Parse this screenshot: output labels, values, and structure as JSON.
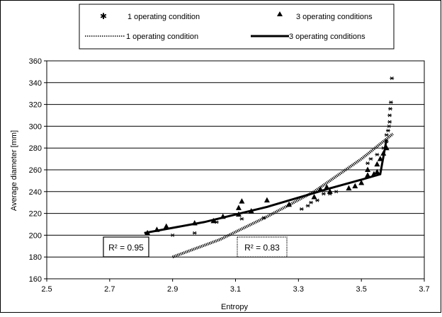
{
  "chart_data": {
    "type": "scatter",
    "xlabel": "Entropy",
    "ylabel": "Average diameter [mm]",
    "xlim": [
      2.5,
      3.7
    ],
    "ylim": [
      160,
      360
    ],
    "x_ticks": [
      "2.5",
      "2.7",
      "2.9",
      "3.1",
      "3.3",
      "3.5",
      "3.7"
    ],
    "y_ticks": [
      "160",
      "180",
      "200",
      "220",
      "240",
      "260",
      "280",
      "300",
      "320",
      "340",
      "360"
    ],
    "grid": "horizontal",
    "legend_position": "top",
    "legend": [
      {
        "label": "1 operating condition",
        "marker": "star"
      },
      {
        "label": "3 operating conditions",
        "marker": "triangle"
      },
      {
        "label": "1 operating condition",
        "line": "dotted"
      },
      {
        "label": "3 operating conditions",
        "line": "solid"
      }
    ],
    "series": [
      {
        "name": "1 operating condition",
        "marker": "star",
        "points": [
          [
            2.9,
            200
          ],
          [
            2.97,
            202
          ],
          [
            3.04,
            212
          ],
          [
            3.12,
            215
          ],
          [
            3.19,
            216
          ],
          [
            3.31,
            224
          ],
          [
            3.33,
            227
          ],
          [
            3.34,
            230
          ],
          [
            3.36,
            232
          ],
          [
            3.38,
            238
          ],
          [
            3.4,
            238
          ],
          [
            3.42,
            240
          ],
          [
            3.52,
            266
          ],
          [
            3.53,
            270
          ],
          [
            3.55,
            274
          ],
          [
            3.57,
            280
          ],
          [
            3.58,
            286
          ],
          [
            3.58,
            292
          ],
          [
            3.585,
            296
          ],
          [
            3.588,
            300
          ],
          [
            3.59,
            304
          ],
          [
            3.59,
            310
          ],
          [
            3.592,
            316
          ],
          [
            3.594,
            322
          ],
          [
            3.597,
            344
          ]
        ]
      },
      {
        "name": "3 operating conditions",
        "marker": "triangle",
        "points": [
          [
            2.82,
            202
          ],
          [
            2.85,
            205
          ],
          [
            2.88,
            208
          ],
          [
            2.97,
            211
          ],
          [
            3.03,
            213
          ],
          [
            3.06,
            217
          ],
          [
            3.11,
            219
          ],
          [
            3.11,
            225
          ],
          [
            3.12,
            231
          ],
          [
            3.15,
            222
          ],
          [
            3.2,
            232
          ],
          [
            3.27,
            228
          ],
          [
            3.35,
            235
          ],
          [
            3.37,
            242
          ],
          [
            3.39,
            244
          ],
          [
            3.4,
            240
          ],
          [
            3.46,
            243
          ],
          [
            3.48,
            245
          ],
          [
            3.5,
            248
          ],
          [
            3.52,
            255
          ],
          [
            3.52,
            260
          ],
          [
            3.54,
            256
          ],
          [
            3.55,
            258
          ],
          [
            3.55,
            265
          ],
          [
            3.56,
            270
          ],
          [
            3.57,
            275
          ],
          [
            3.58,
            280
          ]
        ]
      }
    ],
    "trendlines": [
      {
        "name": "1 operating condition",
        "style": "dotted",
        "x": [
          2.9,
          3.05,
          3.2,
          3.35,
          3.5,
          3.6
        ],
        "y": [
          180,
          196,
          217,
          240,
          270,
          293
        ],
        "r2_label": "R² = 0.83"
      },
      {
        "name": "3 operating conditions",
        "style": "solid",
        "x": [
          2.81,
          3.0,
          3.2,
          3.4,
          3.5,
          3.56,
          3.58
        ],
        "y": [
          202,
          212,
          226,
          243,
          251,
          256,
          288
        ],
        "r2_label": "R² = 0.95"
      }
    ]
  },
  "colors": {
    "background": "#ffffff",
    "gridline": "#000000",
    "marks": "#000000"
  },
  "annotations": {
    "r2_solid": "R² = 0.95",
    "r2_dotted": "R² = 0.83"
  }
}
